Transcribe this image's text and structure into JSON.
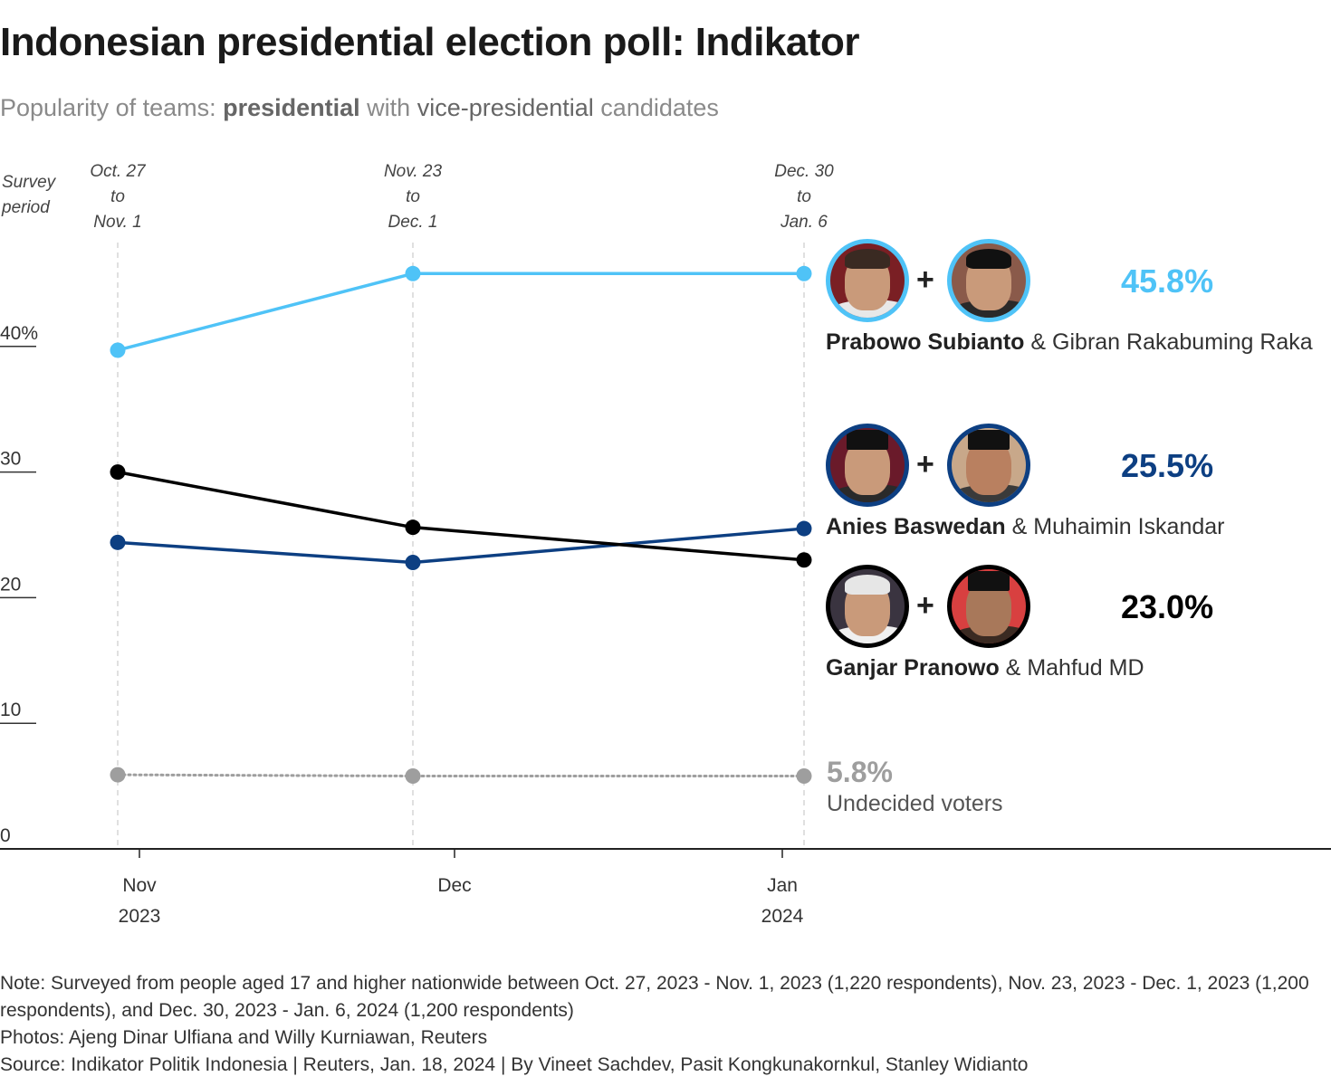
{
  "title": "Indonesian presidential election poll: Indikator",
  "subtitle": {
    "part1": "Popularity of teams: ",
    "bold": "presidential",
    "part2": " with ",
    "mid": "vice-presidential",
    "part3": " candidates"
  },
  "chart_data": {
    "type": "line",
    "title": "Indonesian presidential election poll: Indikator",
    "subtitle": "Popularity of teams: presidential with vice-presidential candidates",
    "xlabel": "",
    "ylabel": "",
    "ylim": [
      0,
      50
    ],
    "yticks": [
      0,
      10,
      20,
      30,
      40
    ],
    "ytick_labels": [
      "0",
      "10",
      "20",
      "30",
      "40%"
    ],
    "x_axis_ticks": [
      {
        "label": "Nov",
        "sublabel": "2023",
        "date": "2023-11-01"
      },
      {
        "label": "Dec",
        "sublabel": "",
        "date": "2023-12-01"
      },
      {
        "label": "Jan",
        "sublabel": "2024",
        "date": "2024-01-01"
      }
    ],
    "survey_period_header": [
      "Survey",
      "period"
    ],
    "survey_periods": [
      {
        "lines": [
          "Oct. 27",
          "to",
          "Nov. 1"
        ],
        "mid_date": "2023-10-30"
      },
      {
        "lines": [
          "Nov. 23",
          "to",
          "Dec. 1"
        ],
        "mid_date": "2023-11-27"
      },
      {
        "lines": [
          "Dec. 30",
          "to",
          "Jan. 6"
        ],
        "mid_date": "2024-01-03"
      }
    ],
    "series": [
      {
        "name": "Prabowo Subianto & Gibran Rakabuming Raka",
        "color": "#4fc3f7",
        "style": "solid",
        "values": [
          39.7,
          45.8,
          45.8
        ]
      },
      {
        "name": "Anies Baswedan & Muhaimin Iskandar",
        "color": "#0d3f82",
        "style": "solid",
        "values": [
          24.4,
          22.8,
          25.5
        ]
      },
      {
        "name": "Ganjar Pranowo & Mahfud MD",
        "color": "#000000",
        "style": "solid",
        "values": [
          30.0,
          25.6,
          23.0
        ]
      },
      {
        "name": "Undecided voters",
        "color": "#9e9e9e",
        "style": "dotted",
        "values": [
          5.9,
          5.8,
          5.8
        ]
      }
    ],
    "grid": false,
    "legend": "right"
  },
  "legend": [
    {
      "president": "Prabowo Subianto",
      "vice": "Gibran Rakabuming Raka",
      "amp": "&",
      "pct": "45.8%",
      "color": "#4fc3f7",
      "plus": "+"
    },
    {
      "president": "Anies Baswedan",
      "vice": "Muhaimin Iskandar",
      "amp": "&",
      "pct": "25.5%",
      "color": "#0d3f82",
      "plus": "+"
    },
    {
      "president": "Ganjar Pranowo",
      "vice": "Mahfud MD",
      "amp": "&",
      "pct": "23.0%",
      "color": "#000000",
      "plus": "+"
    }
  ],
  "undecided": {
    "value": "5.8%",
    "label": "Undecided voters"
  },
  "footer": {
    "note": "Note: Surveyed from people aged 17 and higher nationwide between Oct. 27, 2023 - Nov. 1, 2023 (1,220 respondents), Nov. 23, 2023 - Dec. 1, 2023 (1,200 respondents), and Dec. 30, 2023 - Jan. 6, 2024 (1,200 respondents)",
    "photos": "Photos: Ajeng Dinar Ulfiana and Willy Kurniawan, Reuters",
    "source": "Source: Indikator Politik Indonesia | Reuters, Jan. 18, 2024 | By Vineet Sachdev, Pasit Kongkunakornkul, Stanley Widianto"
  }
}
